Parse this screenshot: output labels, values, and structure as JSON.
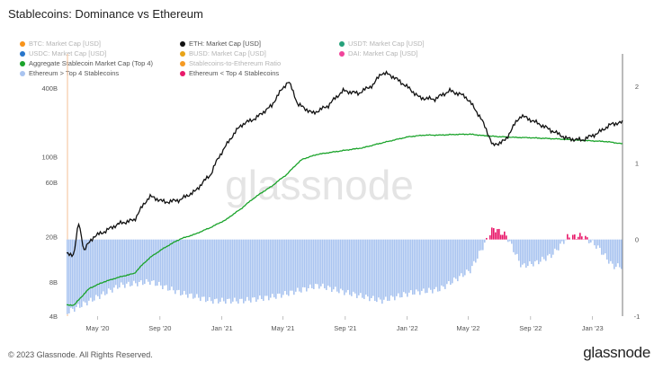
{
  "title": "Stablecoins: Dominance vs Ethereum",
  "footer": "© 2023 Glassnode. All Rights Reserved.",
  "brand": "glassnode",
  "watermark": "glassnode",
  "legend": [
    {
      "label": "BTC: Market Cap [USD]",
      "color": "#f7931a",
      "muted": true
    },
    {
      "label": "ETH: Market Cap [USD]",
      "color": "#111111",
      "muted": false
    },
    {
      "label": "USDT: Market Cap [USD]",
      "color": "#26a17b",
      "muted": true
    },
    {
      "label": "USDC: Market Cap [USD]",
      "color": "#2775ca",
      "muted": true
    },
    {
      "label": "Aggregate Stablecoin Market Cap (Top 4)",
      "color": "#1aa32a",
      "muted": false
    },
    {
      "label": "BUSD: Market Cap [USD]",
      "color": "#e8a317",
      "muted": true
    },
    {
      "label": "DAI: Market Cap [USD]",
      "color": "#f0449a",
      "muted": true
    },
    {
      "label": "Stablecoins-to-Ethereum Ratio",
      "color": "#f59a23",
      "muted": true
    },
    {
      "label": "Ethereum > Top 4 Stablecoins",
      "color": "#a9c4f0",
      "muted": false
    },
    {
      "label": "Ethereum < Top 4 Stablecoins",
      "color": "#e8196a",
      "muted": false
    }
  ],
  "chart_data": {
    "type": "line",
    "title": "Stablecoins: Dominance vs Ethereum",
    "x_ticks": [
      "May '20",
      "Sep '20",
      "Jan '21",
      "May '21",
      "Sep '21",
      "Jan '22",
      "May '22",
      "Sep '22",
      "Jan '23"
    ],
    "y_left_ticks": [
      "400B",
      "100B",
      "60B",
      "20B",
      "8B",
      "4B"
    ],
    "y_right_ticks": [
      "2",
      "1",
      "0",
      "-1"
    ],
    "y_left_scale": "log",
    "y_left_range": [
      4,
      800
    ],
    "y_right_range": [
      -1,
      2
    ],
    "series": [
      {
        "name": "ETH: Market Cap [USD]",
        "color": "#111111",
        "unit": "B USD",
        "values": [
          [
            "2020-03-01",
            14
          ],
          [
            "2020-03-16",
            14
          ],
          [
            "2020-03-25",
            26
          ],
          [
            "2020-04-04",
            15
          ],
          [
            "2020-04-24",
            20
          ],
          [
            "2020-05-14",
            22
          ],
          [
            "2020-06-13",
            26
          ],
          [
            "2020-07-13",
            28
          ],
          [
            "2020-08-12",
            45
          ],
          [
            "2020-09-11",
            40
          ],
          [
            "2020-10-11",
            42
          ],
          [
            "2020-11-10",
            50
          ],
          [
            "2020-12-10",
            70
          ],
          [
            "2021-01-09",
            125
          ],
          [
            "2021-02-08",
            190
          ],
          [
            "2021-03-10",
            220
          ],
          [
            "2021-04-09",
            280
          ],
          [
            "2021-05-12",
            460
          ],
          [
            "2021-05-30",
            290
          ],
          [
            "2021-06-29",
            240
          ],
          [
            "2021-07-29",
            280
          ],
          [
            "2021-08-28",
            380
          ],
          [
            "2021-09-27",
            360
          ],
          [
            "2021-10-27",
            430
          ],
          [
            "2021-11-10",
            540
          ],
          [
            "2021-11-26",
            530
          ],
          [
            "2021-12-26",
            430
          ],
          [
            "2022-01-25",
            330
          ],
          [
            "2022-02-24",
            320
          ],
          [
            "2022-03-26",
            380
          ],
          [
            "2022-04-25",
            340
          ],
          [
            "2022-05-25",
            220
          ],
          [
            "2022-06-18",
            125
          ],
          [
            "2022-07-14",
            140
          ],
          [
            "2022-08-13",
            230
          ],
          [
            "2022-09-12",
            200
          ],
          [
            "2022-10-12",
            170
          ],
          [
            "2022-11-11",
            145
          ],
          [
            "2022-12-11",
            140
          ],
          [
            "2023-01-10",
            160
          ],
          [
            "2023-02-09",
            195
          ],
          [
            "2023-03-01",
            200
          ]
        ]
      },
      {
        "name": "Aggregate Stablecoin Market Cap (Top 4)",
        "color": "#1aa32a",
        "unit": "B USD",
        "values": [
          [
            "2020-03-01",
            5
          ],
          [
            "2020-03-16",
            5
          ],
          [
            "2020-04-01",
            6
          ],
          [
            "2020-04-15",
            7
          ],
          [
            "2020-05-14",
            8
          ],
          [
            "2020-06-13",
            8.8
          ],
          [
            "2020-07-13",
            9.5
          ],
          [
            "2020-08-12",
            13
          ],
          [
            "2020-09-11",
            16
          ],
          [
            "2020-10-11",
            19
          ],
          [
            "2020-11-10",
            21
          ],
          [
            "2020-12-10",
            24
          ],
          [
            "2021-01-09",
            28
          ],
          [
            "2021-02-08",
            35
          ],
          [
            "2021-03-10",
            45
          ],
          [
            "2021-04-09",
            55
          ],
          [
            "2021-05-09",
            70
          ],
          [
            "2021-06-08",
            95
          ],
          [
            "2021-07-08",
            105
          ],
          [
            "2021-08-07",
            110
          ],
          [
            "2021-09-06",
            115
          ],
          [
            "2021-10-06",
            120
          ],
          [
            "2021-11-05",
            130
          ],
          [
            "2021-12-05",
            140
          ],
          [
            "2022-01-04",
            150
          ],
          [
            "2022-02-03",
            155
          ],
          [
            "2022-03-05",
            155
          ],
          [
            "2022-04-04",
            157
          ],
          [
            "2022-05-04",
            158
          ],
          [
            "2022-06-03",
            153
          ],
          [
            "2022-07-03",
            150
          ],
          [
            "2022-08-02",
            148
          ],
          [
            "2022-09-01",
            147
          ],
          [
            "2022-10-01",
            145
          ],
          [
            "2022-10-31",
            143
          ],
          [
            "2022-11-30",
            140
          ],
          [
            "2022-12-30",
            138
          ],
          [
            "2023-01-29",
            136
          ],
          [
            "2023-03-01",
            130
          ]
        ]
      },
      {
        "name": "Stablecoins-to-Ethereum Ratio",
        "color": "#9ab8ec",
        "axis": "right",
        "values": [
          [
            "2020-03-01",
            -0.95
          ],
          [
            "2020-04-15",
            -0.8
          ],
          [
            "2020-06-13",
            -0.6
          ],
          [
            "2020-08-12",
            -0.55
          ],
          [
            "2020-10-11",
            -0.7
          ],
          [
            "2020-12-10",
            -0.8
          ],
          [
            "2021-02-08",
            -0.8
          ],
          [
            "2021-04-09",
            -0.75
          ],
          [
            "2021-05-12",
            -0.7
          ],
          [
            "2021-07-08",
            -0.6
          ],
          [
            "2021-09-06",
            -0.7
          ],
          [
            "2021-11-10",
            -0.8
          ],
          [
            "2022-01-04",
            -0.7
          ],
          [
            "2022-03-05",
            -0.65
          ],
          [
            "2022-05-04",
            -0.4
          ],
          [
            "2022-06-18",
            0.15
          ],
          [
            "2022-07-14",
            0.05
          ],
          [
            "2022-08-13",
            -0.35
          ],
          [
            "2022-09-12",
            -0.3
          ],
          [
            "2022-10-12",
            -0.2
          ],
          [
            "2022-11-11",
            0.03
          ],
          [
            "2022-12-11",
            0.05
          ],
          [
            "2023-01-10",
            -0.1
          ],
          [
            "2023-02-09",
            -0.35
          ],
          [
            "2023-03-01",
            -0.35
          ]
        ]
      }
    ],
    "x_range": [
      "2020-03-01",
      "2023-03-01"
    ],
    "legend_position": "top-left",
    "grid": false
  }
}
